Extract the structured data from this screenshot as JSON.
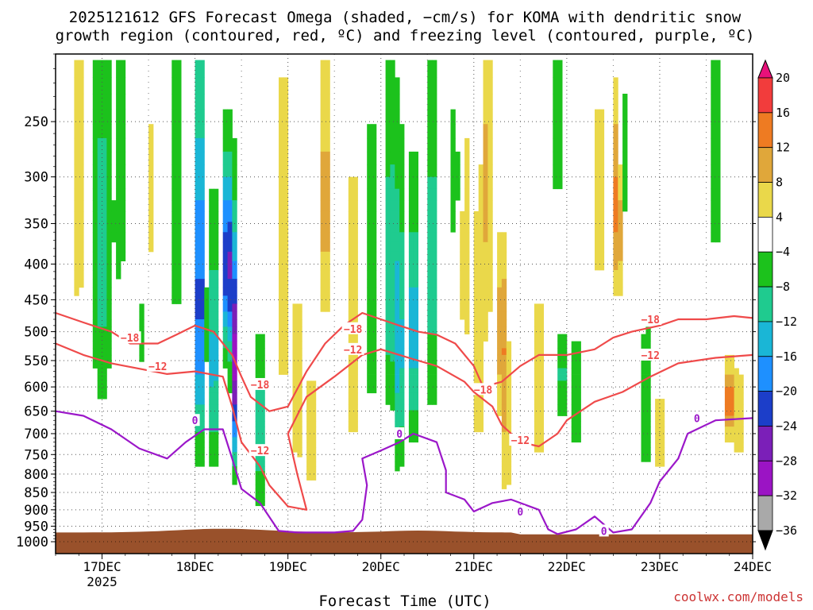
{
  "chart_data": {
    "type": "heatmap",
    "title_line1": "2025121612 GFS Forecast Omega (shaded, −cm/s) for KOMA with dendritic snow",
    "title_line2": "growth region (contoured, red, ºC) and freezing level (contoured, purple, ºC)",
    "xlabel": "Forecast Time (UTC)",
    "watermark": "coolwx.com/models",
    "x_ticks": [
      {
        "t": 17,
        "label": "17DEC"
      },
      {
        "t": 18,
        "label": "18DEC"
      },
      {
        "t": 19,
        "label": "19DEC"
      },
      {
        "t": 20,
        "label": "20DEC"
      },
      {
        "t": 21,
        "label": "21DEC"
      },
      {
        "t": 22,
        "label": "22DEC"
      },
      {
        "t": 23,
        "label": "23DEC"
      },
      {
        "t": 24,
        "label": "24DEC"
      }
    ],
    "x_year_label": "2025",
    "x_range": [
      16.5,
      24.0
    ],
    "y_ticks": [
      250,
      300,
      350,
      400,
      450,
      500,
      550,
      600,
      650,
      700,
      750,
      800,
      850,
      900,
      950,
      1000
    ],
    "y_range_hpa": [
      200,
      1040
    ],
    "colorbar": {
      "levels": [
        "20",
        "16",
        "12",
        "8",
        "4",
        "−4",
        "−8",
        "−12",
        "−16",
        "−20",
        "−24",
        "−28",
        "−32",
        "−36"
      ],
      "colors": [
        "#e8117a",
        "#f23c3c",
        "#ee7b22",
        "#e0a73a",
        "#ead84a",
        "#ffffff",
        "#1cc21c",
        "#1fcb8f",
        "#1ab6d6",
        "#1e90ff",
        "#1c3ec9",
        "#7b1fb8",
        "#9b14c4",
        "#a9a9a9",
        "#000000"
      ]
    },
    "ground_color": "#99512b",
    "contours": [
      {
        "name": "dgz-upper",
        "label": "−18",
        "color": "#ef4a4a",
        "points": [
          [
            16.5,
            470
          ],
          [
            16.8,
            485
          ],
          [
            17.1,
            500
          ],
          [
            17.3,
            520
          ],
          [
            17.6,
            520
          ],
          [
            17.8,
            505
          ],
          [
            18.0,
            490
          ],
          [
            18.2,
            500
          ],
          [
            18.4,
            540
          ],
          [
            18.5,
            580
          ],
          [
            18.6,
            620
          ],
          [
            18.8,
            650
          ],
          [
            19.0,
            640
          ],
          [
            19.2,
            570
          ],
          [
            19.4,
            520
          ],
          [
            19.6,
            490
          ],
          [
            19.8,
            470
          ],
          [
            20.0,
            480
          ],
          [
            20.2,
            490
          ],
          [
            20.4,
            500
          ],
          [
            20.6,
            505
          ],
          [
            20.8,
            520
          ],
          [
            21.0,
            560
          ],
          [
            21.1,
            600
          ],
          [
            21.3,
            590
          ],
          [
            21.5,
            560
          ],
          [
            21.7,
            540
          ],
          [
            22.0,
            540
          ],
          [
            22.3,
            530
          ],
          [
            22.5,
            510
          ],
          [
            22.7,
            500
          ],
          [
            23.0,
            490
          ],
          [
            23.2,
            480
          ],
          [
            23.5,
            480
          ],
          [
            23.8,
            475
          ],
          [
            24.0,
            478
          ]
        ],
        "labels_at": [
          [
            17.3,
            510
          ],
          [
            18.7,
            595
          ],
          [
            19.7,
            495
          ],
          [
            21.1,
            605
          ],
          [
            22.9,
            480
          ]
        ]
      },
      {
        "name": "dgz-lower",
        "label": "−12",
        "color": "#ef4a4a",
        "points": [
          [
            16.5,
            520
          ],
          [
            16.8,
            540
          ],
          [
            17.1,
            555
          ],
          [
            17.4,
            565
          ],
          [
            17.7,
            575
          ],
          [
            18.0,
            570
          ],
          [
            18.3,
            580
          ],
          [
            18.4,
            640
          ],
          [
            18.5,
            720
          ],
          [
            18.7,
            780
          ],
          [
            18.8,
            830
          ],
          [
            19.0,
            890
          ],
          [
            19.2,
            900
          ],
          [
            19.1,
            800
          ],
          [
            19.0,
            700
          ],
          [
            19.2,
            620
          ],
          [
            19.5,
            580
          ],
          [
            19.8,
            540
          ],
          [
            20.0,
            530
          ],
          [
            20.3,
            545
          ],
          [
            20.6,
            560
          ],
          [
            20.9,
            590
          ],
          [
            21.0,
            610
          ],
          [
            21.2,
            640
          ],
          [
            21.3,
            680
          ],
          [
            21.5,
            720
          ],
          [
            21.7,
            730
          ],
          [
            21.9,
            700
          ],
          [
            22.0,
            670
          ],
          [
            22.3,
            630
          ],
          [
            22.6,
            610
          ],
          [
            22.9,
            580
          ],
          [
            23.2,
            555
          ],
          [
            23.6,
            545
          ],
          [
            24.0,
            540
          ]
        ],
        "labels_at": [
          [
            17.6,
            560
          ],
          [
            18.7,
            740
          ],
          [
            19.7,
            530
          ],
          [
            21.5,
            715
          ],
          [
            22.9,
            540
          ]
        ]
      },
      {
        "name": "freezing-level",
        "label": "0",
        "color": "#9b17c9",
        "points": [
          [
            16.5,
            650
          ],
          [
            16.8,
            660
          ],
          [
            17.1,
            690
          ],
          [
            17.4,
            735
          ],
          [
            17.7,
            760
          ],
          [
            17.9,
            720
          ],
          [
            18.1,
            690
          ],
          [
            18.3,
            690
          ],
          [
            18.4,
            760
          ],
          [
            18.5,
            840
          ],
          [
            18.7,
            880
          ],
          [
            18.9,
            965
          ],
          [
            19.1,
            970
          ],
          [
            19.5,
            970
          ],
          [
            19.7,
            965
          ],
          [
            19.8,
            930
          ],
          [
            19.85,
            830
          ],
          [
            19.8,
            760
          ],
          [
            20.0,
            740
          ],
          [
            20.2,
            720
          ],
          [
            20.35,
            700
          ],
          [
            20.6,
            720
          ],
          [
            20.7,
            790
          ],
          [
            20.7,
            850
          ],
          [
            20.9,
            870
          ],
          [
            21.0,
            905
          ],
          [
            21.2,
            880
          ],
          [
            21.4,
            870
          ],
          [
            21.7,
            900
          ],
          [
            21.8,
            960
          ],
          [
            21.9,
            975
          ],
          [
            22.1,
            960
          ],
          [
            22.3,
            920
          ],
          [
            22.5,
            970
          ],
          [
            22.7,
            960
          ],
          [
            22.9,
            880
          ],
          [
            23.0,
            820
          ],
          [
            23.2,
            760
          ],
          [
            23.3,
            700
          ],
          [
            23.6,
            670
          ],
          [
            24.0,
            665
          ]
        ],
        "labels_at": [
          [
            18.0,
            670
          ],
          [
            20.2,
            700
          ],
          [
            21.5,
            905
          ],
          [
            22.4,
            965
          ],
          [
            23.4,
            665
          ]
        ]
      }
    ]
  }
}
